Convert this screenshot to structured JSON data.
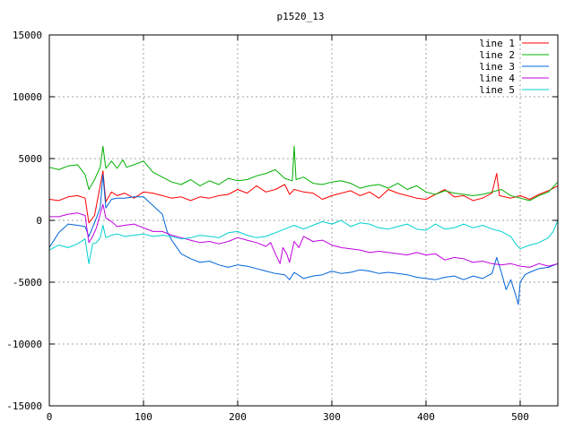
{
  "chart_data": {
    "type": "line",
    "title": "p1520_13",
    "xlabel": "",
    "ylabel": "",
    "xlim": [
      0,
      540
    ],
    "ylim": [
      -15000,
      15000
    ],
    "xticks": [
      0,
      100,
      200,
      300,
      400,
      500
    ],
    "yticks": [
      -15000,
      -10000,
      -5000,
      0,
      5000,
      10000,
      15000
    ],
    "grid": true,
    "legend_position": "top-right",
    "series": [
      {
        "name": "line 1",
        "color": "#ff0000",
        "points": [
          [
            0,
            1700
          ],
          [
            10,
            1600
          ],
          [
            20,
            1900
          ],
          [
            30,
            2000
          ],
          [
            38,
            1800
          ],
          [
            42,
            -200
          ],
          [
            48,
            400
          ],
          [
            54,
            2800
          ],
          [
            57,
            4000
          ],
          [
            60,
            1500
          ],
          [
            66,
            2300
          ],
          [
            72,
            2000
          ],
          [
            80,
            2200
          ],
          [
            90,
            1800
          ],
          [
            100,
            2300
          ],
          [
            110,
            2200
          ],
          [
            120,
            2000
          ],
          [
            130,
            1800
          ],
          [
            140,
            1900
          ],
          [
            150,
            1600
          ],
          [
            160,
            1900
          ],
          [
            170,
            1800
          ],
          [
            180,
            2000
          ],
          [
            190,
            2100
          ],
          [
            200,
            2500
          ],
          [
            210,
            2200
          ],
          [
            220,
            2800
          ],
          [
            230,
            2300
          ],
          [
            240,
            2500
          ],
          [
            250,
            2900
          ],
          [
            255,
            2100
          ],
          [
            260,
            2500
          ],
          [
            270,
            2300
          ],
          [
            280,
            2200
          ],
          [
            290,
            1700
          ],
          [
            300,
            2000
          ],
          [
            310,
            2200
          ],
          [
            320,
            2400
          ],
          [
            330,
            2000
          ],
          [
            340,
            2300
          ],
          [
            350,
            1800
          ],
          [
            360,
            2500
          ],
          [
            370,
            2200
          ],
          [
            380,
            2000
          ],
          [
            390,
            1800
          ],
          [
            400,
            1700
          ],
          [
            410,
            2100
          ],
          [
            420,
            2500
          ],
          [
            430,
            1900
          ],
          [
            440,
            2000
          ],
          [
            450,
            1600
          ],
          [
            460,
            1800
          ],
          [
            470,
            2200
          ],
          [
            475,
            3800
          ],
          [
            478,
            2000
          ],
          [
            490,
            1800
          ],
          [
            500,
            2000
          ],
          [
            510,
            1700
          ],
          [
            520,
            2100
          ],
          [
            530,
            2400
          ],
          [
            540,
            2800
          ]
        ]
      },
      {
        "name": "line 2",
        "color": "#00b000",
        "points": [
          [
            0,
            4300
          ],
          [
            10,
            4100
          ],
          [
            20,
            4400
          ],
          [
            30,
            4500
          ],
          [
            38,
            3700
          ],
          [
            42,
            2500
          ],
          [
            48,
            3300
          ],
          [
            54,
            4300
          ],
          [
            57,
            6000
          ],
          [
            60,
            4200
          ],
          [
            66,
            4800
          ],
          [
            72,
            4200
          ],
          [
            78,
            4900
          ],
          [
            82,
            4300
          ],
          [
            90,
            4500
          ],
          [
            100,
            4800
          ],
          [
            110,
            3900
          ],
          [
            120,
            3500
          ],
          [
            130,
            3100
          ],
          [
            140,
            2900
          ],
          [
            150,
            3300
          ],
          [
            160,
            2800
          ],
          [
            170,
            3200
          ],
          [
            180,
            2900
          ],
          [
            190,
            3400
          ],
          [
            200,
            3200
          ],
          [
            210,
            3300
          ],
          [
            220,
            3600
          ],
          [
            230,
            3800
          ],
          [
            240,
            4100
          ],
          [
            250,
            3400
          ],
          [
            258,
            3200
          ],
          [
            260,
            6000
          ],
          [
            262,
            3300
          ],
          [
            270,
            3500
          ],
          [
            280,
            3000
          ],
          [
            290,
            2900
          ],
          [
            300,
            3100
          ],
          [
            310,
            3200
          ],
          [
            320,
            3000
          ],
          [
            330,
            2600
          ],
          [
            340,
            2800
          ],
          [
            350,
            2900
          ],
          [
            360,
            2600
          ],
          [
            370,
            3000
          ],
          [
            380,
            2500
          ],
          [
            390,
            2800
          ],
          [
            400,
            2300
          ],
          [
            410,
            2100
          ],
          [
            420,
            2400
          ],
          [
            430,
            2200
          ],
          [
            440,
            2100
          ],
          [
            450,
            2000
          ],
          [
            460,
            2100
          ],
          [
            470,
            2300
          ],
          [
            480,
            2500
          ],
          [
            490,
            2000
          ],
          [
            500,
            1800
          ],
          [
            510,
            1600
          ],
          [
            520,
            2000
          ],
          [
            530,
            2300
          ],
          [
            540,
            3100
          ]
        ]
      },
      {
        "name": "line 3",
        "color": "#0064d8",
        "points": [
          [
            0,
            -2200
          ],
          [
            10,
            -1000
          ],
          [
            20,
            -300
          ],
          [
            30,
            -400
          ],
          [
            38,
            -500
          ],
          [
            42,
            -1300
          ],
          [
            48,
            -200
          ],
          [
            54,
            1000
          ],
          [
            57,
            3700
          ],
          [
            60,
            1000
          ],
          [
            66,
            1700
          ],
          [
            72,
            1800
          ],
          [
            80,
            1800
          ],
          [
            90,
            1900
          ],
          [
            100,
            1900
          ],
          [
            110,
            1200
          ],
          [
            120,
            500
          ],
          [
            125,
            -900
          ],
          [
            130,
            -1600
          ],
          [
            140,
            -2700
          ],
          [
            150,
            -3100
          ],
          [
            160,
            -3400
          ],
          [
            170,
            -3300
          ],
          [
            180,
            -3600
          ],
          [
            190,
            -3800
          ],
          [
            200,
            -3600
          ],
          [
            210,
            -3700
          ],
          [
            220,
            -3900
          ],
          [
            230,
            -4100
          ],
          [
            240,
            -4300
          ],
          [
            250,
            -4400
          ],
          [
            255,
            -4800
          ],
          [
            260,
            -4200
          ],
          [
            270,
            -4700
          ],
          [
            280,
            -4500
          ],
          [
            290,
            -4400
          ],
          [
            300,
            -4100
          ],
          [
            310,
            -4300
          ],
          [
            320,
            -4200
          ],
          [
            330,
            -4000
          ],
          [
            340,
            -4100
          ],
          [
            350,
            -4300
          ],
          [
            360,
            -4200
          ],
          [
            370,
            -4300
          ],
          [
            380,
            -4400
          ],
          [
            390,
            -4600
          ],
          [
            400,
            -4700
          ],
          [
            410,
            -4800
          ],
          [
            420,
            -4600
          ],
          [
            430,
            -4500
          ],
          [
            440,
            -4800
          ],
          [
            450,
            -4500
          ],
          [
            460,
            -4700
          ],
          [
            470,
            -4300
          ],
          [
            475,
            -3000
          ],
          [
            480,
            -4200
          ],
          [
            485,
            -5600
          ],
          [
            490,
            -4800
          ],
          [
            495,
            -6000
          ],
          [
            498,
            -6800
          ],
          [
            500,
            -5000
          ],
          [
            505,
            -4400
          ],
          [
            510,
            -4200
          ],
          [
            520,
            -3900
          ],
          [
            530,
            -3800
          ],
          [
            540,
            -3500
          ]
        ]
      },
      {
        "name": "line 4",
        "color": "#c000e0",
        "points": [
          [
            0,
            300
          ],
          [
            10,
            300
          ],
          [
            20,
            500
          ],
          [
            30,
            600
          ],
          [
            38,
            400
          ],
          [
            42,
            -1800
          ],
          [
            46,
            -1300
          ],
          [
            50,
            -600
          ],
          [
            54,
            500
          ],
          [
            57,
            1300
          ],
          [
            60,
            200
          ],
          [
            66,
            -100
          ],
          [
            72,
            -500
          ],
          [
            80,
            -400
          ],
          [
            90,
            -300
          ],
          [
            100,
            -600
          ],
          [
            110,
            -900
          ],
          [
            120,
            -900
          ],
          [
            130,
            -1200
          ],
          [
            140,
            -1400
          ],
          [
            150,
            -1600
          ],
          [
            160,
            -1800
          ],
          [
            170,
            -1700
          ],
          [
            180,
            -1900
          ],
          [
            190,
            -1700
          ],
          [
            200,
            -1400
          ],
          [
            210,
            -1600
          ],
          [
            220,
            -1800
          ],
          [
            230,
            -2100
          ],
          [
            235,
            -1800
          ],
          [
            240,
            -2700
          ],
          [
            245,
            -3500
          ],
          [
            248,
            -2200
          ],
          [
            252,
            -2700
          ],
          [
            255,
            -3400
          ],
          [
            260,
            -1700
          ],
          [
            265,
            -2200
          ],
          [
            270,
            -1300
          ],
          [
            280,
            -1700
          ],
          [
            290,
            -1600
          ],
          [
            300,
            -2000
          ],
          [
            310,
            -2200
          ],
          [
            320,
            -2300
          ],
          [
            330,
            -2400
          ],
          [
            340,
            -2600
          ],
          [
            350,
            -2500
          ],
          [
            360,
            -2600
          ],
          [
            370,
            -2700
          ],
          [
            380,
            -2800
          ],
          [
            390,
            -2600
          ],
          [
            400,
            -2800
          ],
          [
            410,
            -2700
          ],
          [
            420,
            -3200
          ],
          [
            430,
            -3000
          ],
          [
            440,
            -3100
          ],
          [
            450,
            -3400
          ],
          [
            460,
            -3300
          ],
          [
            470,
            -3500
          ],
          [
            480,
            -3600
          ],
          [
            490,
            -3500
          ],
          [
            500,
            -3700
          ],
          [
            510,
            -3800
          ],
          [
            520,
            -3500
          ],
          [
            530,
            -3700
          ],
          [
            540,
            -3500
          ]
        ]
      },
      {
        "name": "line 5",
        "color": "#00d0d0",
        "points": [
          [
            0,
            -2400
          ],
          [
            10,
            -2000
          ],
          [
            20,
            -2200
          ],
          [
            30,
            -1900
          ],
          [
            38,
            -1500
          ],
          [
            42,
            -3500
          ],
          [
            46,
            -1900
          ],
          [
            50,
            -1800
          ],
          [
            54,
            -1400
          ],
          [
            57,
            -400
          ],
          [
            60,
            -1400
          ],
          [
            66,
            -1200
          ],
          [
            72,
            -1100
          ],
          [
            80,
            -1300
          ],
          [
            90,
            -1200
          ],
          [
            100,
            -1100
          ],
          [
            110,
            -1300
          ],
          [
            120,
            -1200
          ],
          [
            130,
            -1300
          ],
          [
            140,
            -1500
          ],
          [
            150,
            -1400
          ],
          [
            160,
            -1200
          ],
          [
            170,
            -1300
          ],
          [
            180,
            -1400
          ],
          [
            190,
            -1000
          ],
          [
            200,
            -900
          ],
          [
            210,
            -1200
          ],
          [
            220,
            -1400
          ],
          [
            230,
            -1300
          ],
          [
            240,
            -1000
          ],
          [
            250,
            -700
          ],
          [
            260,
            -400
          ],
          [
            270,
            -700
          ],
          [
            280,
            -400
          ],
          [
            290,
            -100
          ],
          [
            300,
            -300
          ],
          [
            310,
            0
          ],
          [
            320,
            -500
          ],
          [
            330,
            -200
          ],
          [
            340,
            -300
          ],
          [
            350,
            -600
          ],
          [
            360,
            -700
          ],
          [
            370,
            -500
          ],
          [
            380,
            -300
          ],
          [
            390,
            -700
          ],
          [
            400,
            -800
          ],
          [
            410,
            -300
          ],
          [
            420,
            -700
          ],
          [
            430,
            -600
          ],
          [
            440,
            -300
          ],
          [
            450,
            -600
          ],
          [
            460,
            -400
          ],
          [
            470,
            -700
          ],
          [
            480,
            -900
          ],
          [
            490,
            -1300
          ],
          [
            495,
            -1900
          ],
          [
            500,
            -2300
          ],
          [
            510,
            -2000
          ],
          [
            520,
            -1800
          ],
          [
            530,
            -1400
          ],
          [
            535,
            -900
          ],
          [
            540,
            0
          ]
        ]
      }
    ]
  }
}
